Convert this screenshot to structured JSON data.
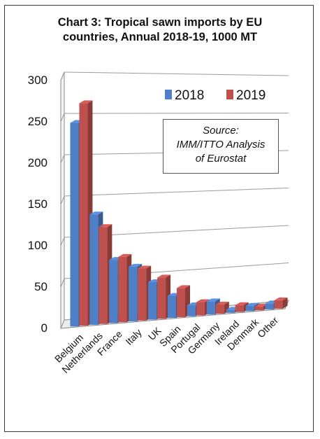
{
  "chart_data": {
    "type": "bar",
    "title_lines": [
      "Chart 3: Tropical sawn imports by EU",
      "countries, Annual 2018-19, 1000 MT"
    ],
    "categories": [
      "Belgium",
      "Netherlands",
      "France",
      "Italy",
      "UK",
      "Spain",
      "Portugal",
      "Germany",
      "Ireland",
      "Denmark",
      "Other"
    ],
    "series": [
      {
        "name": "2018",
        "values": [
          247,
          135,
          78,
          68,
          47,
          28,
          14,
          17,
          4,
          7,
          8
        ],
        "color": "#4f7fc6"
      },
      {
        "name": "2019",
        "values": [
          271,
          119,
          81,
          65,
          52,
          37,
          17,
          12,
          9,
          5,
          11
        ],
        "color": "#c0504d"
      }
    ],
    "ylim": [
      0,
      300
    ],
    "yticks": [
      "0",
      "50",
      "100",
      "150",
      "200",
      "250",
      "300"
    ],
    "grid": true,
    "legend_placement": "top-right",
    "annotation_lines": [
      "Source:",
      "IMM/ITTO Analysis",
      "of Eurostat"
    ]
  }
}
